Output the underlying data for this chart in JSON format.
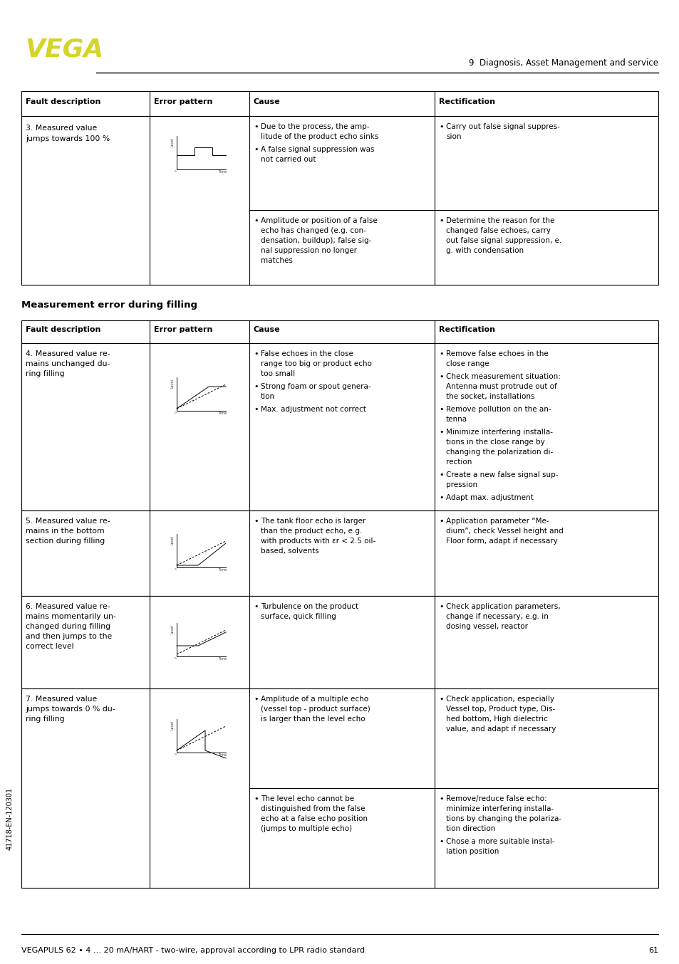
{
  "bg_color": "#ffffff",
  "vega_color": "#d4d42a",
  "header_text": "9  Diagnosis, Asset Management and service",
  "footer_text": "VEGAPULS 62 • 4 … 20 mA/HART - two-wire, approval according to LPR radio standard",
  "footer_page": "61",
  "section_title": "Measurement error during filling",
  "col_headers": [
    "Fault description",
    "Error pattern",
    "Cause",
    "Rectification"
  ],
  "left_text": "41718-EN-120301"
}
